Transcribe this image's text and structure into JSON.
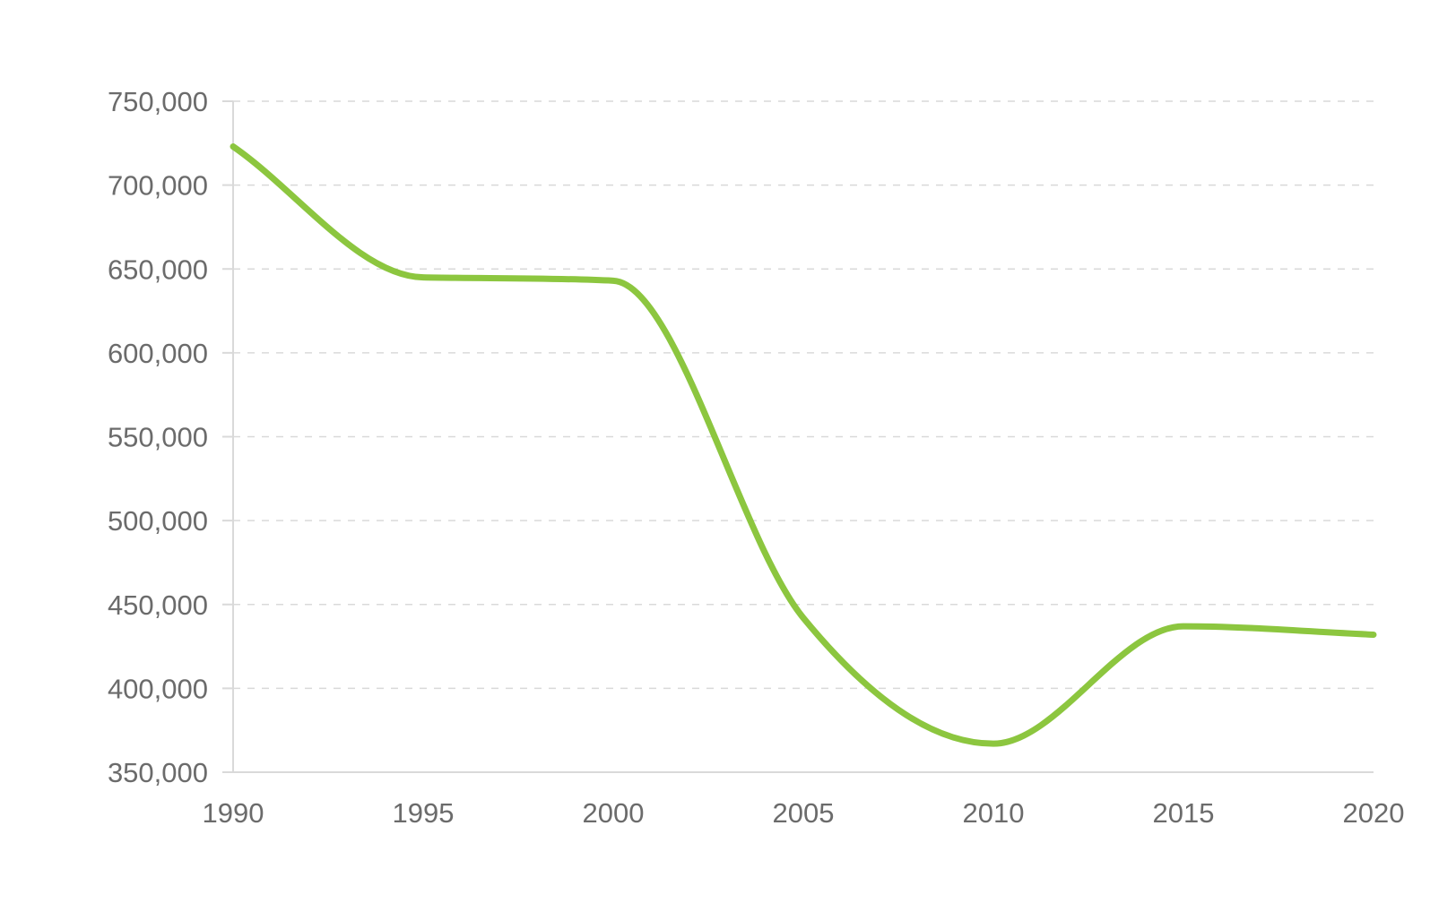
{
  "chart_data": {
    "type": "line",
    "x": [
      1990,
      1995,
      2000,
      2005,
      2010,
      2015,
      2020
    ],
    "series": [
      {
        "values": [
          723000,
          645000,
          643000,
          442000,
          367000,
          437000,
          432000
        ],
        "color": "#8cc63f"
      }
    ],
    "x_tick_labels": [
      "1990",
      "1995",
      "2000",
      "2005",
      "2010",
      "2015",
      "2020"
    ],
    "y_tick_values": [
      350000,
      400000,
      450000,
      500000,
      550000,
      600000,
      650000,
      700000,
      750000
    ],
    "y_tick_labels": [
      "350,000",
      "400,000",
      "450,000",
      "500,000",
      "550,000",
      "600,000",
      "650,000",
      "700,000",
      "750,000"
    ],
    "xlim": [
      1990,
      2020
    ],
    "ylim": [
      350000,
      750000
    ],
    "grid": "horizontal-dashed",
    "legend": "none",
    "title": "",
    "xlabel": "",
    "ylabel": ""
  }
}
